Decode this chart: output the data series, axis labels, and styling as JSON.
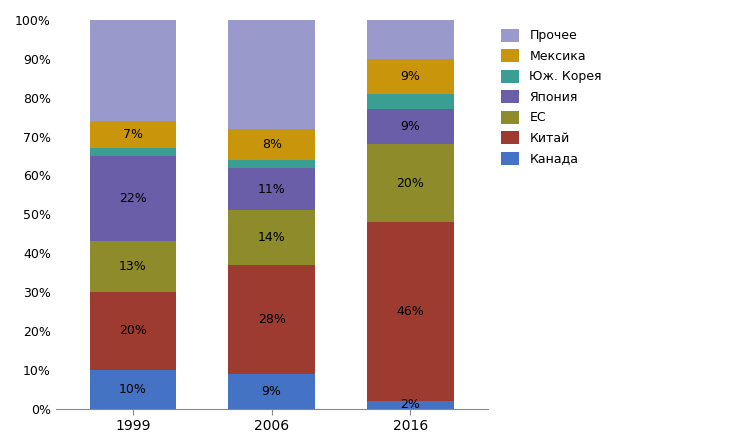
{
  "years": [
    "1999",
    "2006",
    "2016"
  ],
  "categories": [
    "Канада",
    "Китай",
    "ЕС",
    "Япония",
    "Юж. Корея",
    "Мексика",
    "Прочее"
  ],
  "values": {
    "Канада": [
      10,
      9,
      2
    ],
    "Китай": [
      20,
      28,
      46
    ],
    "ЕС": [
      13,
      14,
      20
    ],
    "Япония": [
      22,
      11,
      9
    ],
    "Юж. Корея": [
      2,
      2,
      4
    ],
    "Мексика": [
      7,
      8,
      9
    ],
    "Прочее": [
      26,
      28,
      10
    ]
  },
  "colors": {
    "Канада": "#4472C4",
    "Китай": "#9E3B31",
    "ЕС": "#8D8B2A",
    "Япония": "#6B5EA8",
    "Юж. Корея": "#3B9E93",
    "Мексика": "#C9960B",
    "Прочее": "#9999CC"
  },
  "labels": {
    "Канада": [
      "10%",
      "9%",
      "2%"
    ],
    "Китай": [
      "20%",
      "28%",
      "46%"
    ],
    "ЕС": [
      "13%",
      "14%",
      "20%"
    ],
    "Япония": [
      "22%",
      "11%",
      "9%"
    ],
    "Юж. Корея": [
      "",
      "",
      ""
    ],
    "Мексика": [
      "7%",
      "8%",
      "9%"
    ],
    "Прочее": [
      "",
      "",
      ""
    ]
  },
  "ylim": [
    0,
    100
  ],
  "yticks": [
    0,
    10,
    20,
    30,
    40,
    50,
    60,
    70,
    80,
    90,
    100
  ],
  "ytick_labels": [
    "0%",
    "10%",
    "20%",
    "30%",
    "40%",
    "50%",
    "60%",
    "70%",
    "80%",
    "90%",
    "100%"
  ],
  "bar_width": 0.28,
  "label_fontsize": 9,
  "legend_fontsize": 9,
  "x_positions": [
    0,
    0.45,
    0.9
  ]
}
